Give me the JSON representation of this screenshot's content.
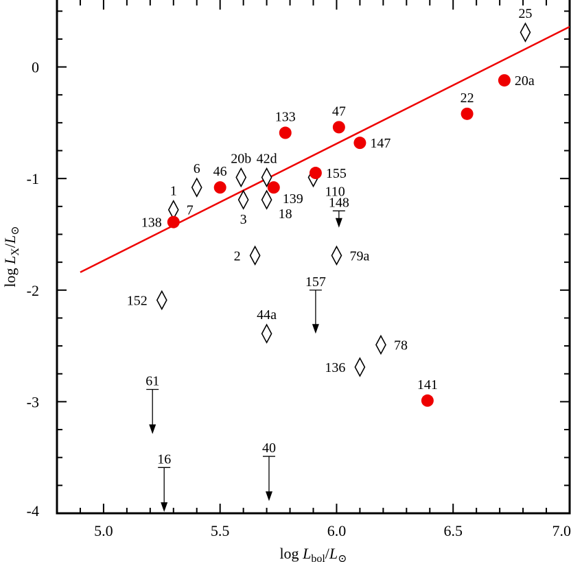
{
  "chart_data": {
    "type": "scatter",
    "xlabel": {
      "prefix": "log ",
      "var": "L",
      "sub": "bol",
      "sep": "/",
      "var2": "L",
      "sub2": "⊙"
    },
    "ylabel": {
      "prefix": "log ",
      "var": "L",
      "sub": "X",
      "sep": "/",
      "var2": "L",
      "sub2": "⊙"
    },
    "xlim": [
      4.8,
      7.0
    ],
    "ylim": [
      -4.0,
      0.6
    ],
    "x_ticks": [
      "5.0",
      "5.5",
      "6.0",
      "6.5",
      "7.0"
    ],
    "x_tick_values": [
      5.0,
      5.5,
      6.0,
      6.5,
      7.0
    ],
    "y_ticks": [
      "0",
      "-1",
      "-2",
      "-3",
      "-4"
    ],
    "y_tick_values": [
      0,
      -1,
      -2,
      -3,
      -4
    ],
    "grid": false,
    "colors": {
      "filled": "#ee0000",
      "fit": "#ee0000",
      "axis": "#000000"
    },
    "fit_line": {
      "x": [
        4.9,
        7.0
      ],
      "y": [
        -1.84,
        0.36
      ]
    },
    "filled_points": [
      {
        "label": "138",
        "x": 5.3,
        "y": -1.39,
        "lpos": "left"
      },
      {
        "label": "46",
        "x": 5.5,
        "y": -1.08,
        "lpos": "above"
      },
      {
        "label": "139",
        "x": 5.73,
        "y": -1.08,
        "lpos": "below-right"
      },
      {
        "label": "133",
        "x": 5.78,
        "y": -0.59,
        "lpos": "above"
      },
      {
        "label": "155",
        "x": 5.91,
        "y": -0.95,
        "lpos": "right"
      },
      {
        "label": "47",
        "x": 6.01,
        "y": -0.54,
        "lpos": "above"
      },
      {
        "label": "147",
        "x": 6.1,
        "y": -0.68,
        "lpos": "right"
      },
      {
        "label": "22",
        "x": 6.56,
        "y": -0.42,
        "lpos": "above"
      },
      {
        "label": "20a",
        "x": 6.72,
        "y": -0.12,
        "lpos": "right"
      },
      {
        "label": "141",
        "x": 6.39,
        "y": -2.99,
        "lpos": "above"
      }
    ],
    "open_points": [
      {
        "label": "1",
        "x": 5.3,
        "y": -1.28,
        "lpos": "above"
      },
      {
        "label": "7",
        "x": 5.3,
        "y": -1.28,
        "lpos": "right"
      },
      {
        "label": "6",
        "x": 5.4,
        "y": -1.08,
        "lpos": "above"
      },
      {
        "label": "20b",
        "x": 5.59,
        "y": -0.99,
        "lpos": "above"
      },
      {
        "label": "3",
        "x": 5.6,
        "y": -1.19,
        "lpos": "below"
      },
      {
        "label": "42d",
        "x": 5.7,
        "y": -0.99,
        "lpos": "above"
      },
      {
        "label": "18",
        "x": 5.7,
        "y": -1.19,
        "lpos": "below-right"
      },
      {
        "label": "110",
        "x": 5.9,
        "y": -0.99,
        "lpos": "below-right"
      },
      {
        "label": "2",
        "x": 5.65,
        "y": -1.69,
        "lpos": "left"
      },
      {
        "label": "79a",
        "x": 6.0,
        "y": -1.69,
        "lpos": "right"
      },
      {
        "label": "152",
        "x": 5.25,
        "y": -2.09,
        "lpos": "left"
      },
      {
        "label": "44a",
        "x": 5.7,
        "y": -2.39,
        "lpos": "above"
      },
      {
        "label": "78",
        "x": 6.19,
        "y": -2.49,
        "lpos": "right"
      },
      {
        "label": "136",
        "x": 6.1,
        "y": -2.69,
        "lpos": "left"
      },
      {
        "label": "25",
        "x": 6.81,
        "y": 0.31,
        "lpos": "above"
      }
    ],
    "upper_limits": [
      {
        "label": "148",
        "x": 6.01,
        "y": -1.29,
        "y_end": -1.44
      },
      {
        "label": "157",
        "x": 5.91,
        "y": -2.0,
        "y_end": -2.39
      },
      {
        "label": "61",
        "x": 5.21,
        "y": -2.89,
        "y_end": -3.29
      },
      {
        "label": "16",
        "x": 5.26,
        "y": -3.59,
        "y_end": -4.0
      },
      {
        "label": "40",
        "x": 5.71,
        "y": -3.49,
        "y_end": -3.89
      }
    ]
  }
}
